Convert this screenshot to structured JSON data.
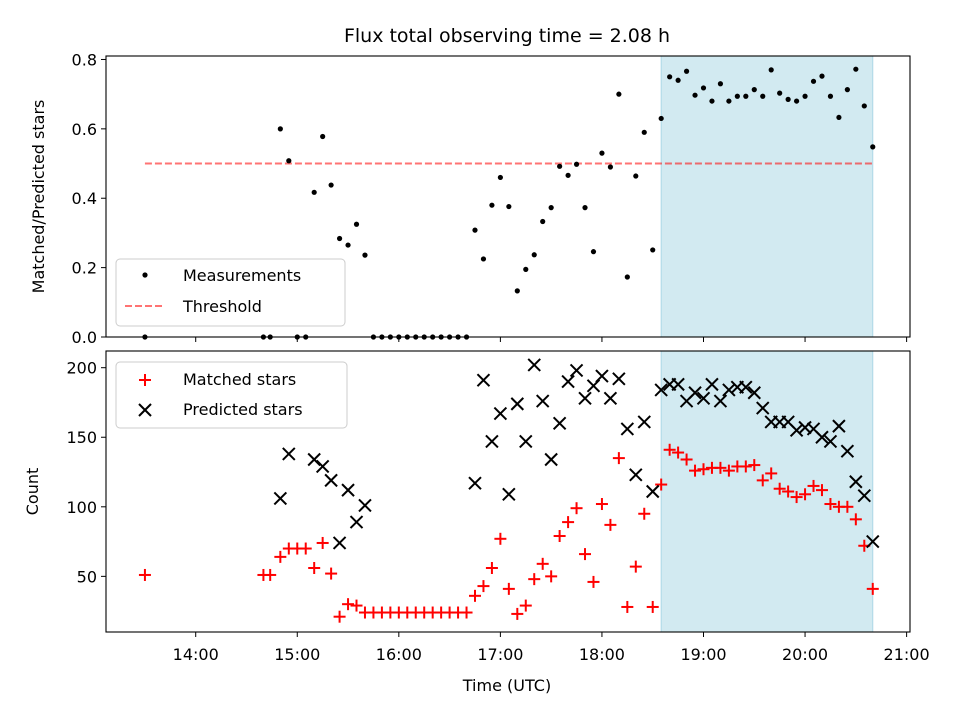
{
  "chart_data": [
    {
      "type": "scatter",
      "title": "Flux total observing time = 2.08 h",
      "xlabel": "",
      "ylabel": "Matched/Predicted stars",
      "xlim": [
        "13:07",
        "21:02"
      ],
      "ylim": [
        0,
        0.81
      ],
      "yticks": [
        0.0,
        0.2,
        0.4,
        0.6,
        0.8
      ],
      "ytick_labels": [
        "0.0",
        "0.2",
        "0.4",
        "0.6",
        "0.8"
      ],
      "grid": false,
      "legend": {
        "placement": "lower-left",
        "entries": [
          "Measurements",
          "Threshold"
        ]
      },
      "highlight_span": {
        "x_start": "18:35",
        "x_end": "20:40",
        "color": "#add8e6"
      },
      "threshold": {
        "name": "Threshold",
        "value": 0.5,
        "x_start": "13:30",
        "x_end": "20:40",
        "color": "#ff0000"
      },
      "series": [
        {
          "name": "Measurements",
          "marker": "dot",
          "color": "#000000",
          "points": [
            [
              "13:30",
              0.0
            ],
            [
              "14:40",
              0.0
            ],
            [
              "14:44",
              0.0
            ],
            [
              "14:50",
              0.6
            ],
            [
              "14:55",
              0.508
            ],
            [
              "15:00",
              0.0
            ],
            [
              "15:05",
              0.0
            ],
            [
              "15:10",
              0.417
            ],
            [
              "15:15",
              0.578
            ],
            [
              "15:20",
              0.438
            ],
            [
              "15:25",
              0.284
            ],
            [
              "15:30",
              0.265
            ],
            [
              "15:35",
              0.325
            ],
            [
              "15:40",
              0.236
            ],
            [
              "15:45",
              0.0
            ],
            [
              "15:50",
              0.0
            ],
            [
              "15:55",
              0.0
            ],
            [
              "16:00",
              0.0
            ],
            [
              "16:05",
              0.0
            ],
            [
              "16:10",
              0.0
            ],
            [
              "16:15",
              0.0
            ],
            [
              "16:20",
              0.0
            ],
            [
              "16:25",
              0.0
            ],
            [
              "16:30",
              0.0
            ],
            [
              "16:35",
              0.0
            ],
            [
              "16:40",
              0.0
            ],
            [
              "16:45",
              0.308
            ],
            [
              "16:50",
              0.225
            ],
            [
              "16:55",
              0.38
            ],
            [
              "17:00",
              0.46
            ],
            [
              "17:05",
              0.376
            ],
            [
              "17:10",
              0.133
            ],
            [
              "17:15",
              0.195
            ],
            [
              "17:20",
              0.237
            ],
            [
              "17:25",
              0.333
            ],
            [
              "17:30",
              0.373
            ],
            [
              "17:35",
              0.492
            ],
            [
              "17:40",
              0.466
            ],
            [
              "17:45",
              0.498
            ],
            [
              "17:50",
              0.373
            ],
            [
              "17:55",
              0.246
            ],
            [
              "18:00",
              0.53
            ],
            [
              "18:05",
              0.49
            ],
            [
              "18:10",
              0.7
            ],
            [
              "18:15",
              0.173
            ],
            [
              "18:20",
              0.464
            ],
            [
              "18:25",
              0.59
            ],
            [
              "18:30",
              0.251
            ],
            [
              "18:35",
              0.63
            ],
            [
              "18:40",
              0.75
            ],
            [
              "18:45",
              0.74
            ],
            [
              "18:50",
              0.766
            ],
            [
              "18:55",
              0.697
            ],
            [
              "19:00",
              0.718
            ],
            [
              "19:05",
              0.68
            ],
            [
              "19:10",
              0.73
            ],
            [
              "19:15",
              0.68
            ],
            [
              "19:20",
              0.694
            ],
            [
              "19:25",
              0.694
            ],
            [
              "19:30",
              0.713
            ],
            [
              "19:35",
              0.694
            ],
            [
              "19:40",
              0.77
            ],
            [
              "19:45",
              0.703
            ],
            [
              "19:50",
              0.685
            ],
            [
              "19:55",
              0.68
            ],
            [
              "20:00",
              0.694
            ],
            [
              "20:05",
              0.737
            ],
            [
              "20:10",
              0.752
            ],
            [
              "20:15",
              0.694
            ],
            [
              "20:20",
              0.633
            ],
            [
              "20:25",
              0.713
            ],
            [
              "20:30",
              0.772
            ],
            [
              "20:35",
              0.666
            ],
            [
              "20:40",
              0.548
            ]
          ]
        }
      ]
    },
    {
      "type": "scatter",
      "title": "",
      "xlabel": "Time (UTC)",
      "ylabel": "Count",
      "xlim": [
        "13:07",
        "21:02"
      ],
      "ylim": [
        10,
        212
      ],
      "xticks": [
        "14:00",
        "15:00",
        "16:00",
        "17:00",
        "18:00",
        "19:00",
        "20:00",
        "21:00"
      ],
      "yticks": [
        50,
        100,
        150,
        200
      ],
      "ytick_labels": [
        "50",
        "100",
        "150",
        "200"
      ],
      "grid": false,
      "legend": {
        "placement": "upper-left",
        "entries": [
          "Matched stars",
          "Predicted stars"
        ]
      },
      "highlight_span": {
        "x_start": "18:35",
        "x_end": "20:40",
        "color": "#add8e6"
      },
      "series": [
        {
          "name": "Matched stars",
          "marker": "plus",
          "color": "#ff0000",
          "points": [
            [
              "13:30",
              51
            ],
            [
              "14:40",
              51
            ],
            [
              "14:44",
              51
            ],
            [
              "14:50",
              64
            ],
            [
              "14:55",
              70
            ],
            [
              "15:00",
              70
            ],
            [
              "15:05",
              70
            ],
            [
              "15:10",
              56
            ],
            [
              "15:15",
              74
            ],
            [
              "15:20",
              52
            ],
            [
              "15:25",
              21
            ],
            [
              "15:30",
              30
            ],
            [
              "15:35",
              29
            ],
            [
              "15:40",
              24
            ],
            [
              "15:45",
              24
            ],
            [
              "15:50",
              24
            ],
            [
              "15:55",
              24
            ],
            [
              "16:00",
              24
            ],
            [
              "16:05",
              24
            ],
            [
              "16:10",
              24
            ],
            [
              "16:15",
              24
            ],
            [
              "16:20",
              24
            ],
            [
              "16:25",
              24
            ],
            [
              "16:30",
              24
            ],
            [
              "16:35",
              24
            ],
            [
              "16:40",
              24
            ],
            [
              "16:45",
              36
            ],
            [
              "16:50",
              43
            ],
            [
              "16:55",
              56
            ],
            [
              "17:00",
              77
            ],
            [
              "17:05",
              41
            ],
            [
              "17:10",
              23
            ],
            [
              "17:15",
              29
            ],
            [
              "17:20",
              48
            ],
            [
              "17:25",
              59
            ],
            [
              "17:30",
              50
            ],
            [
              "17:35",
              79
            ],
            [
              "17:40",
              89
            ],
            [
              "17:45",
              99
            ],
            [
              "17:50",
              66
            ],
            [
              "17:55",
              46
            ],
            [
              "18:00",
              102
            ],
            [
              "18:05",
              87
            ],
            [
              "18:10",
              135
            ],
            [
              "18:15",
              28
            ],
            [
              "18:20",
              57
            ],
            [
              "18:25",
              95
            ],
            [
              "18:30",
              28
            ],
            [
              "18:35",
              116
            ],
            [
              "18:40",
              141
            ],
            [
              "18:45",
              139
            ],
            [
              "18:50",
              134
            ],
            [
              "18:55",
              126
            ],
            [
              "19:00",
              127
            ],
            [
              "19:05",
              128
            ],
            [
              "19:10",
              128
            ],
            [
              "19:15",
              126
            ],
            [
              "19:20",
              129
            ],
            [
              "19:25",
              129
            ],
            [
              "19:30",
              130
            ],
            [
              "19:35",
              119
            ],
            [
              "19:40",
              124
            ],
            [
              "19:45",
              113
            ],
            [
              "19:50",
              111
            ],
            [
              "19:55",
              107
            ],
            [
              "20:00",
              109
            ],
            [
              "20:05",
              115
            ],
            [
              "20:10",
              112
            ],
            [
              "20:15",
              102
            ],
            [
              "20:20",
              100
            ],
            [
              "20:25",
              100
            ],
            [
              "20:30",
              91
            ],
            [
              "20:35",
              72
            ],
            [
              "20:40",
              41
            ]
          ]
        },
        {
          "name": "Predicted stars",
          "marker": "x",
          "color": "#000000",
          "points": [
            [
              "14:50",
              106
            ],
            [
              "14:55",
              138
            ],
            [
              "15:10",
              134
            ],
            [
              "15:15",
              129
            ],
            [
              "15:20",
              119
            ],
            [
              "15:25",
              74
            ],
            [
              "15:30",
              112
            ],
            [
              "15:35",
              89
            ],
            [
              "15:40",
              101
            ],
            [
              "16:45",
              117
            ],
            [
              "16:50",
              191
            ],
            [
              "16:55",
              147
            ],
            [
              "17:00",
              167
            ],
            [
              "17:05",
              109
            ],
            [
              "17:10",
              174
            ],
            [
              "17:15",
              147
            ],
            [
              "17:20",
              202
            ],
            [
              "17:25",
              176
            ],
            [
              "17:30",
              134
            ],
            [
              "17:35",
              160
            ],
            [
              "17:40",
              190
            ],
            [
              "17:45",
              198
            ],
            [
              "17:50",
              178
            ],
            [
              "17:55",
              187
            ],
            [
              "18:00",
              194
            ],
            [
              "18:05",
              178
            ],
            [
              "18:10",
              192
            ],
            [
              "18:15",
              156
            ],
            [
              "18:20",
              123
            ],
            [
              "18:25",
              161
            ],
            [
              "18:30",
              111
            ],
            [
              "18:35",
              184
            ],
            [
              "18:40",
              188
            ],
            [
              "18:45",
              188
            ],
            [
              "18:50",
              176
            ],
            [
              "18:55",
              182
            ],
            [
              "19:00",
              178
            ],
            [
              "19:05",
              188
            ],
            [
              "19:10",
              176
            ],
            [
              "19:15",
              184
            ],
            [
              "19:20",
              186
            ],
            [
              "19:25",
              186
            ],
            [
              "19:30",
              182
            ],
            [
              "19:35",
              171
            ],
            [
              "19:40",
              161
            ],
            [
              "19:45",
              161
            ],
            [
              "19:50",
              161
            ],
            [
              "19:55",
              155
            ],
            [
              "20:00",
              157
            ],
            [
              "20:05",
              156
            ],
            [
              "20:10",
              150
            ],
            [
              "20:15",
              147
            ],
            [
              "20:20",
              158
            ],
            [
              "20:25",
              140
            ],
            [
              "20:30",
              118
            ],
            [
              "20:35",
              108
            ],
            [
              "20:40",
              75
            ]
          ]
        }
      ]
    }
  ]
}
